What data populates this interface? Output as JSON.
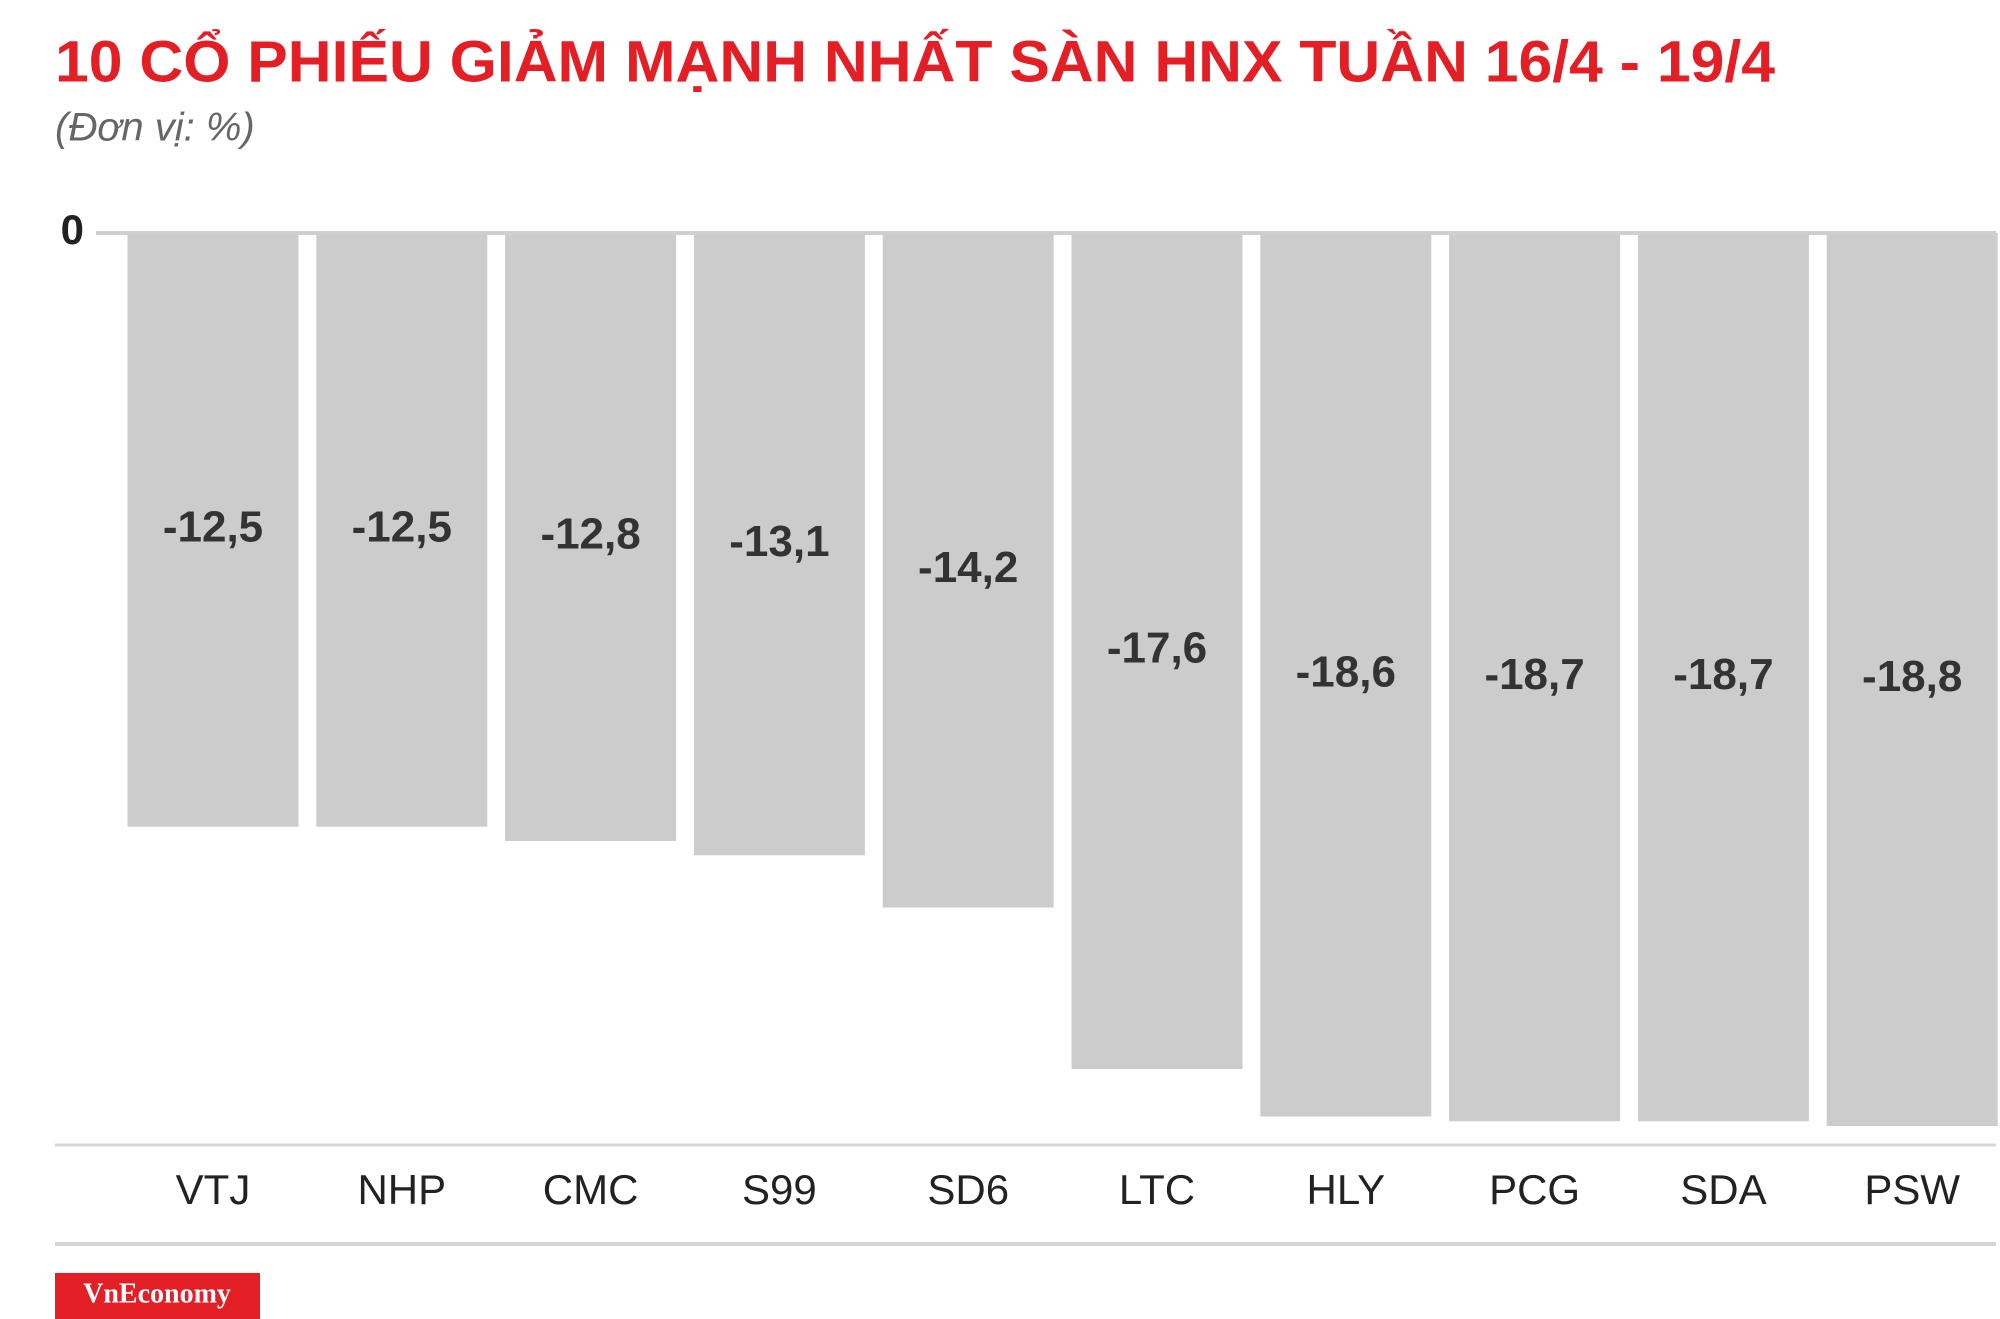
{
  "chart_data": {
    "type": "bar",
    "title": "10 CỔ PHIẾU GIẢM MẠNH NHẤT SÀN HNX TUẦN 16/4 - 19/4",
    "subtitle": "(Đơn vị: %)",
    "categories": [
      "VTJ",
      "NHP",
      "CMC",
      "S99",
      "SD6",
      "LTC",
      "HLY",
      "PCG",
      "SDA",
      "PSW"
    ],
    "values": [
      -12.5,
      -12.5,
      -12.8,
      -13.1,
      -14.2,
      -17.6,
      -18.6,
      -18.7,
      -18.7,
      -18.8
    ],
    "value_labels": [
      "-12,5",
      "-12,5",
      "-12,8",
      "-13,1",
      "-14,2",
      "-17,6",
      "-18,6",
      "-18,7",
      "-18,7",
      "-18,8"
    ],
    "color": "#cdcccd",
    "ylim": [
      -19.2,
      0
    ],
    "yticks": [
      0
    ],
    "grid": true,
    "source": "VnEconomy"
  }
}
